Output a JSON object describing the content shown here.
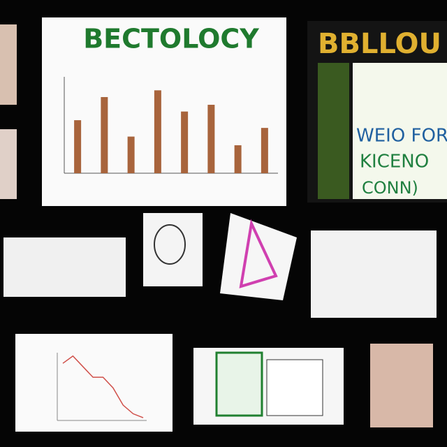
{
  "board": {
    "main_poster": {
      "title": "BECTOLOCY",
      "chart": {
        "type": "bar",
        "values": [
          5.5,
          7.9,
          3.8,
          8.6,
          6.4,
          7.1,
          2.9,
          4.7
        ],
        "ylim": [
          0,
          10
        ],
        "color": "#a8643c"
      }
    },
    "side_poster": {
      "title": "BBLLOU",
      "lines": [
        "WEIO FOR",
        "KICENO",
        "CONN)"
      ]
    },
    "line_sheet": {
      "chart": {
        "type": "line",
        "values": [
          8.4,
          9.5,
          7.9,
          6.3,
          6.3,
          4.7,
          2.1,
          0.8,
          0.2
        ],
        "ylim": [
          0,
          10
        ],
        "color": "#d0504a"
      }
    }
  }
}
